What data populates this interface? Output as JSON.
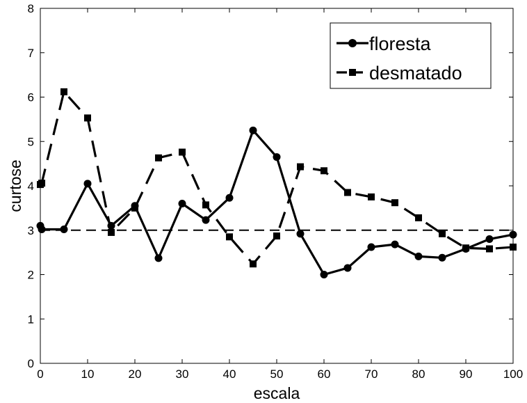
{
  "chart_data": {
    "type": "line",
    "xlabel": "escala",
    "ylabel": "curtose",
    "xlim": [
      0,
      100
    ],
    "ylim": [
      0,
      8
    ],
    "xticks": [
      0,
      10,
      20,
      30,
      40,
      50,
      60,
      70,
      80,
      90,
      100
    ],
    "yticks": [
      0,
      1,
      2,
      3,
      4,
      5,
      6,
      7,
      8
    ],
    "grid": false,
    "legend_position": "top-right",
    "series": [
      {
        "name": "floresta",
        "style": "solid",
        "marker": "circle",
        "x": [
          0,
          0.3,
          5,
          10,
          15,
          20,
          25,
          30,
          35,
          40,
          45,
          50,
          55,
          60,
          65,
          70,
          75,
          80,
          85,
          90,
          95,
          100
        ],
        "y": [
          3.1,
          3.02,
          3.02,
          4.05,
          3.1,
          3.55,
          2.37,
          3.6,
          3.23,
          3.73,
          5.25,
          4.65,
          2.92,
          2.0,
          2.15,
          2.62,
          2.68,
          2.41,
          2.38,
          2.58,
          2.8,
          2.9
        ]
      },
      {
        "name": "desmatado",
        "style": "dashed",
        "marker": "square",
        "x": [
          0,
          0.3,
          5,
          10,
          15,
          20,
          25,
          30,
          35,
          40,
          45,
          50,
          55,
          60,
          65,
          70,
          75,
          80,
          85,
          90,
          95,
          100
        ],
        "y": [
          4.03,
          4.06,
          6.12,
          5.53,
          2.95,
          3.5,
          4.63,
          4.76,
          3.57,
          2.85,
          2.24,
          2.87,
          4.43,
          4.34,
          3.85,
          3.75,
          3.62,
          3.28,
          2.92,
          2.6,
          2.58,
          2.62
        ]
      },
      {
        "style": "dashed",
        "marker": "none",
        "x": [
          0,
          100
        ],
        "y": [
          3,
          3
        ]
      }
    ]
  }
}
